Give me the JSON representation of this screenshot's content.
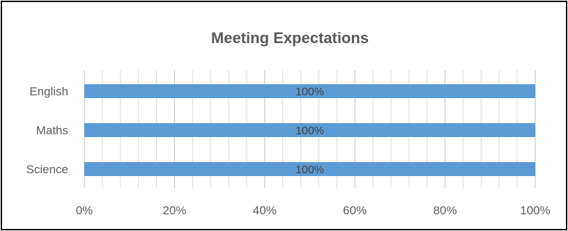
{
  "chart_data": {
    "type": "bar",
    "orientation": "horizontal",
    "title": "Meeting Expectations",
    "categories": [
      "English",
      "Maths",
      "Science"
    ],
    "values": [
      100,
      100,
      100
    ],
    "data_labels": [
      "100%",
      "100%",
      "100%"
    ],
    "x_ticks": [
      "0%",
      "20%",
      "40%",
      "60%",
      "80%",
      "100%"
    ],
    "xlim": [
      0,
      100
    ],
    "grid": true,
    "legend": "none",
    "bar_color": "#5B9BD5",
    "gridline_color": "#D9D9D9",
    "text_color": "#595959"
  }
}
